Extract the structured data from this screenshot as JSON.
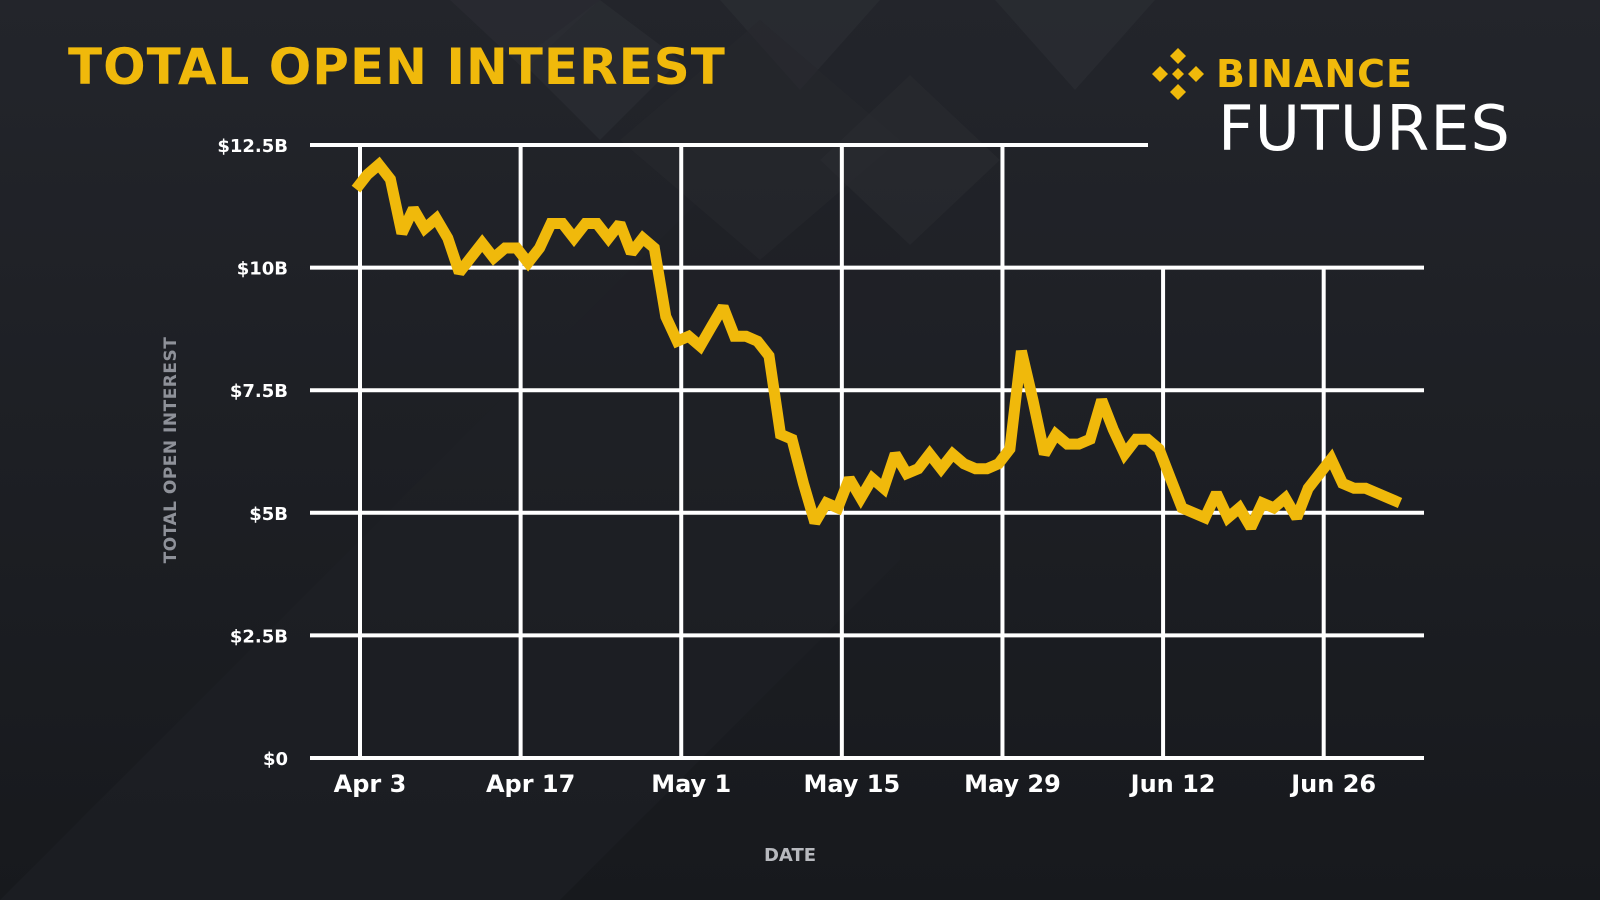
{
  "title": "TOTAL OPEN INTEREST",
  "brand": {
    "name": "BINANCE",
    "product": "FUTURES"
  },
  "colors": {
    "accent": "#f0b90b",
    "background": "#1b1d22",
    "grid": "#ffffff"
  },
  "icons": {
    "brand_logo": "binance-diamond-logo-icon"
  },
  "chart_data": {
    "type": "line",
    "ylabel": "TOTAL OPEN INTEREST",
    "xlabel": "DATE",
    "ylim": [
      0,
      12.5
    ],
    "yticks": [
      {
        "value": 0,
        "label": "$0"
      },
      {
        "value": 2.5,
        "label": "$2.5B"
      },
      {
        "value": 5,
        "label": "$5B"
      },
      {
        "value": 7.5,
        "label": "$7.5B"
      },
      {
        "value": 10,
        "label": "$10B"
      },
      {
        "value": 12.5,
        "label": "$12.5B"
      }
    ],
    "xticks": [
      "Apr 3",
      "Apr 17",
      "May 1",
      "May 15",
      "May 29",
      "Jun 12",
      "Jun 26"
    ],
    "grid": true,
    "series": [
      {
        "values": [
          [
            "Apr 3",
            11.6
          ],
          [
            "Apr 4",
            11.9
          ],
          [
            "Apr 5",
            12.1
          ],
          [
            "Apr 6",
            11.8
          ],
          [
            "Apr 7",
            10.7
          ],
          [
            "Apr 8",
            11.2
          ],
          [
            "Apr 9",
            10.8
          ],
          [
            "Apr 10",
            11.0
          ],
          [
            "Apr 11",
            10.6
          ],
          [
            "Apr 12",
            9.9
          ],
          [
            "Apr 13",
            10.2
          ],
          [
            "Apr 14",
            10.5
          ],
          [
            "Apr 15",
            10.2
          ],
          [
            "Apr 16",
            10.4
          ],
          [
            "Apr 17",
            10.4
          ],
          [
            "Apr 18",
            10.1
          ],
          [
            "Apr 19",
            10.4
          ],
          [
            "Apr 20",
            10.9
          ],
          [
            "Apr 21",
            10.9
          ],
          [
            "Apr 22",
            10.6
          ],
          [
            "Apr 23",
            10.9
          ],
          [
            "Apr 24",
            10.9
          ],
          [
            "Apr 25",
            10.6
          ],
          [
            "Apr 26",
            10.9
          ],
          [
            "Apr 27",
            10.3
          ],
          [
            "Apr 28",
            10.6
          ],
          [
            "Apr 29",
            10.4
          ],
          [
            "Apr 30",
            9.0
          ],
          [
            "May 1",
            8.5
          ],
          [
            "May 2",
            8.6
          ],
          [
            "May 3",
            8.4
          ],
          [
            "May 4",
            8.8
          ],
          [
            "May 5",
            9.2
          ],
          [
            "May 6",
            8.6
          ],
          [
            "May 7",
            8.6
          ],
          [
            "May 8",
            8.5
          ],
          [
            "May 9",
            8.2
          ],
          [
            "May 10",
            6.6
          ],
          [
            "May 11",
            6.5
          ],
          [
            "May 12",
            5.6
          ],
          [
            "May 13",
            4.8
          ],
          [
            "May 14",
            5.2
          ],
          [
            "May 15",
            5.1
          ],
          [
            "May 16",
            5.7
          ],
          [
            "May 17",
            5.3
          ],
          [
            "May 18",
            5.7
          ],
          [
            "May 19",
            5.5
          ],
          [
            "May 20",
            6.2
          ],
          [
            "May 21",
            5.8
          ],
          [
            "May 22",
            5.9
          ],
          [
            "May 23",
            6.2
          ],
          [
            "May 24",
            5.9
          ],
          [
            "May 25",
            6.2
          ],
          [
            "May 26",
            6.0
          ],
          [
            "May 27",
            5.9
          ],
          [
            "May 28",
            5.9
          ],
          [
            "May 29",
            6.0
          ],
          [
            "May 30",
            6.3
          ],
          [
            "May 31",
            8.3
          ],
          [
            "Jun 1",
            7.3
          ],
          [
            "Jun 2",
            6.2
          ],
          [
            "Jun 3",
            6.6
          ],
          [
            "Jun 4",
            6.4
          ],
          [
            "Jun 5",
            6.4
          ],
          [
            "Jun 6",
            6.5
          ],
          [
            "Jun 7",
            7.3
          ],
          [
            "Jun 8",
            6.7
          ],
          [
            "Jun 9",
            6.2
          ],
          [
            "Jun 10",
            6.5
          ],
          [
            "Jun 11",
            6.5
          ],
          [
            "Jun 12",
            6.3
          ],
          [
            "Jun 13",
            5.7
          ],
          [
            "Jun 14",
            5.1
          ],
          [
            "Jun 15",
            5.0
          ],
          [
            "Jun 16",
            4.9
          ],
          [
            "Jun 17",
            5.4
          ],
          [
            "Jun 18",
            4.9
          ],
          [
            "Jun 19",
            5.1
          ],
          [
            "Jun 20",
            4.7
          ],
          [
            "Jun 21",
            5.2
          ],
          [
            "Jun 22",
            5.1
          ],
          [
            "Jun 23",
            5.3
          ],
          [
            "Jun 24",
            4.9
          ],
          [
            "Jun 25",
            5.5
          ],
          [
            "Jun 26",
            5.8
          ],
          [
            "Jun 27",
            6.1
          ],
          [
            "Jun 28",
            5.6
          ],
          [
            "Jun 29",
            5.5
          ],
          [
            "Jun 30",
            5.5
          ],
          [
            "Jul 1",
            5.4
          ],
          [
            "Jul 2",
            5.3
          ],
          [
            "Jul 3",
            5.2
          ]
        ]
      }
    ]
  }
}
